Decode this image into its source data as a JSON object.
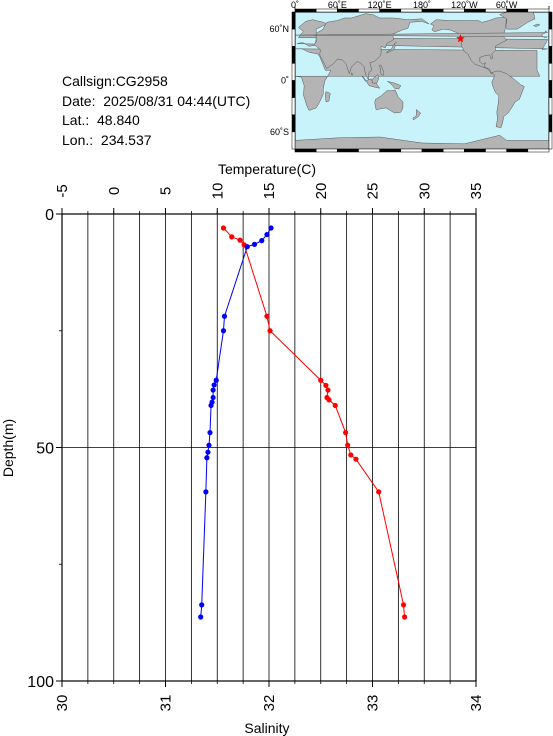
{
  "info": {
    "callsign": "Callsign:CG2958",
    "date": "Date:  2025/08/31 04:44(UTC)",
    "lat": "Lat.:  48.840",
    "lon": "Lon.:  234.537"
  },
  "map": {
    "lon_labels": [
      "0˚",
      "60˚E",
      "120˚E",
      "180˚",
      "120˚W",
      "60˚W"
    ],
    "lat_labels": [
      "60˚N",
      "0˚",
      "60˚S"
    ],
    "ocean_color": "#c8f3fb",
    "land_color": "#b4b4b4",
    "marker_color": "#ff0000",
    "station": {
      "lat": 48.84,
      "lon": 234.537
    }
  },
  "chart_data": {
    "type": "line",
    "ylabel": "Depth(m)",
    "y_ticks": [
      "0",
      "50",
      "100"
    ],
    "ylim": [
      0,
      100
    ],
    "y_inverted": true,
    "top_axis": {
      "label": "Temperature(C)",
      "ticks": [
        "-5",
        "0",
        "5",
        "10",
        "15",
        "20",
        "25",
        "30",
        "35"
      ],
      "lim": [
        -5,
        35
      ]
    },
    "bottom_axis": {
      "label": "Salinity",
      "ticks": [
        "30",
        "31",
        "32",
        "33",
        "34"
      ],
      "lim": [
        30,
        34
      ]
    },
    "grid": true,
    "series": [
      {
        "axis": "top",
        "color": "#ff0000",
        "points": [
          [
            10.6,
            3.0
          ],
          [
            11.4,
            4.9
          ],
          [
            12.2,
            5.6
          ],
          [
            12.6,
            6.6
          ],
          [
            14.8,
            21.9
          ],
          [
            15.1,
            25.0
          ],
          [
            20.0,
            35.6
          ],
          [
            20.5,
            36.7
          ],
          [
            20.7,
            37.7
          ],
          [
            20.6,
            39.3
          ],
          [
            20.8,
            39.8
          ],
          [
            21.4,
            41.0
          ],
          [
            22.4,
            46.8
          ],
          [
            22.6,
            49.5
          ],
          [
            22.9,
            51.6
          ],
          [
            23.4,
            52.5
          ],
          [
            25.6,
            59.5
          ],
          [
            28.0,
            83.7
          ],
          [
            28.1,
            86.3
          ]
        ]
      },
      {
        "axis": "bottom",
        "color": "#0000ff",
        "points": [
          [
            32.02,
            3.0
          ],
          [
            31.98,
            4.4
          ],
          [
            31.93,
            5.7
          ],
          [
            31.86,
            6.5
          ],
          [
            31.79,
            7.0
          ],
          [
            31.57,
            21.9
          ],
          [
            31.56,
            25.0
          ],
          [
            31.49,
            35.6
          ],
          [
            31.47,
            36.6
          ],
          [
            31.46,
            37.7
          ],
          [
            31.46,
            39.3
          ],
          [
            31.45,
            40.3
          ],
          [
            31.44,
            41.0
          ],
          [
            31.43,
            46.8
          ],
          [
            31.42,
            49.5
          ],
          [
            31.41,
            51.0
          ],
          [
            31.4,
            52.2
          ],
          [
            31.39,
            59.5
          ],
          [
            31.35,
            83.7
          ],
          [
            31.34,
            86.3
          ]
        ]
      }
    ]
  }
}
